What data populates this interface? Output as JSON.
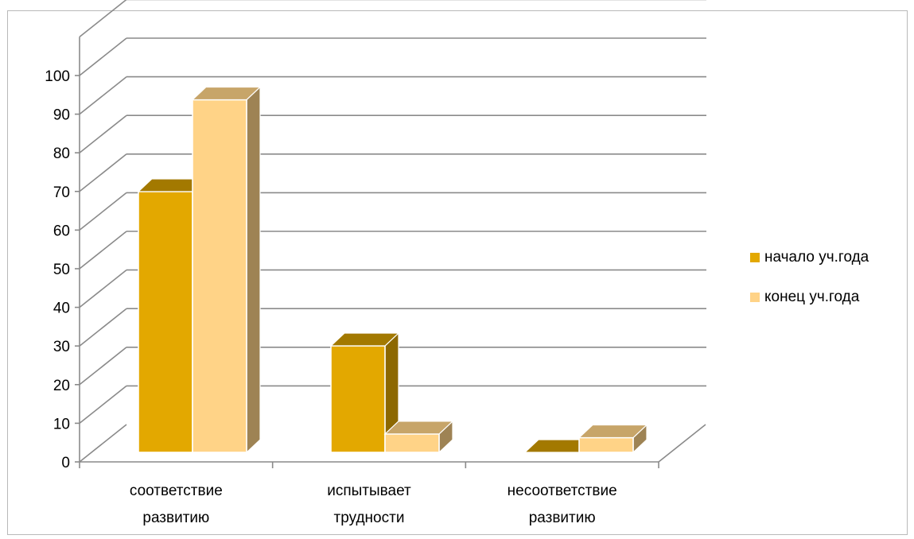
{
  "chart_data": {
    "type": "bar",
    "categories": [
      "соответствие развитию",
      "испытывает трудности",
      "несоответствие развитию"
    ],
    "category_lines": [
      [
        "соответствие",
        "развитию"
      ],
      [
        "испытывает",
        "трудности"
      ],
      [
        "несоответствие",
        "развитию"
      ]
    ],
    "series": [
      {
        "name": "начало уч.года",
        "values": [
          71,
          29,
          0
        ],
        "color": "#E3A800"
      },
      {
        "name": "конец уч.года",
        "values": [
          96,
          5,
          4
        ],
        "color": "#FFD387"
      }
    ],
    "ylim": [
      0,
      100
    ],
    "yticks": [
      "0",
      "10",
      "20",
      "30",
      "40",
      "50",
      "60",
      "70",
      "80",
      "90",
      "100"
    ],
    "grid": true,
    "legend_position": "right",
    "style": "3d-column"
  }
}
